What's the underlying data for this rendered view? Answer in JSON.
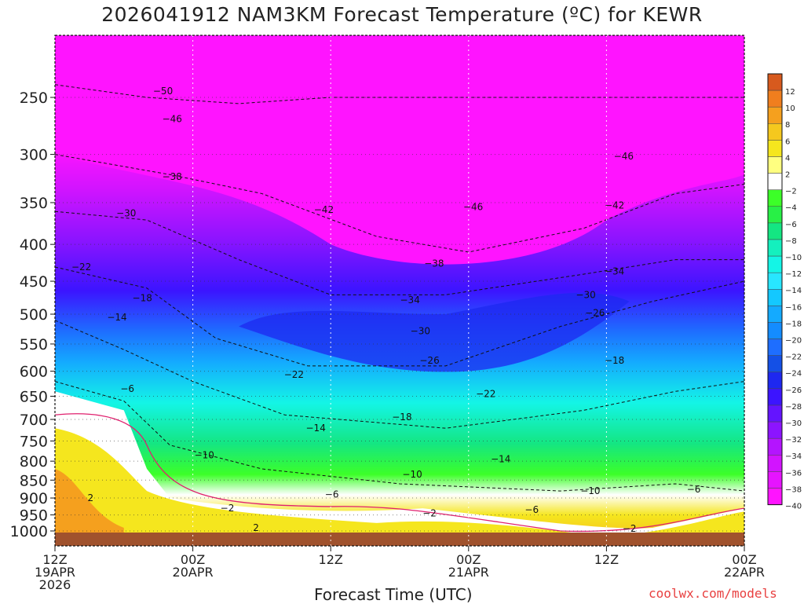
{
  "title": "2026041912 NAM3KM Forecast Temperature (ºC) for KEWR",
  "xlabel": "Forecast Time (UTC)",
  "credit": "coolwx.com/models",
  "chart_data": {
    "type": "contour",
    "title": "2026041912 NAM3KM Forecast Temperature (ºC) for KEWR",
    "xlabel": "Forecast Time (UTC)",
    "ylabel": "",
    "y_axis": "pressure (log), inverted",
    "ylim": [
      1050,
      200
    ],
    "y_ticks": [
      250,
      300,
      350,
      400,
      450,
      500,
      550,
      600,
      650,
      700,
      750,
      800,
      850,
      900,
      950,
      1000
    ],
    "x_ticks": [
      {
        "h": 0,
        "lines": [
          "12Z",
          "19APR",
          "2026"
        ]
      },
      {
        "h": 12,
        "lines": [
          "00Z",
          "20APR"
        ]
      },
      {
        "h": 24,
        "lines": [
          "12Z"
        ]
      },
      {
        "h": 36,
        "lines": [
          "00Z",
          "21APR"
        ]
      },
      {
        "h": 48,
        "lines": [
          "12Z"
        ]
      },
      {
        "h": 60,
        "lines": [
          "00Z",
          "22APR"
        ]
      }
    ],
    "xlim": [
      0,
      60
    ],
    "colorbar": {
      "levels": [
        12,
        10,
        8,
        6,
        4,
        2,
        -2,
        -4,
        -6,
        -8,
        -10,
        -12,
        -14,
        -16,
        -18,
        -20,
        -22,
        -24,
        -26,
        -28,
        -30,
        -32,
        -34,
        -36,
        -38,
        -40
      ],
      "colors": [
        "#d75a1e",
        "#f07e1e",
        "#f5a01e",
        "#f5c81e",
        "#f5e61e",
        "#ffff80",
        "#ffffff",
        "#3cff28",
        "#28f046",
        "#14e682",
        "#14f0be",
        "#14f5e6",
        "#28e6ff",
        "#14c8ff",
        "#14aaff",
        "#148cff",
        "#1e6eff",
        "#1450e6",
        "#1e28f0",
        "#3c14ff",
        "#6414ff",
        "#8c14ff",
        "#b414ff",
        "#d214ff",
        "#e614ff",
        "#ff14ff"
      ]
    },
    "labeled_contours": [
      {
        "value": -50,
        "h": 9.4,
        "p": 245
      },
      {
        "value": -46,
        "h": 10.2,
        "p": 268
      },
      {
        "value": -46,
        "h": 49.5,
        "p": 302
      },
      {
        "value": -46,
        "h": 36.4,
        "p": 355
      },
      {
        "value": -42,
        "h": 23.4,
        "p": 358
      },
      {
        "value": -42,
        "h": 48.7,
        "p": 353
      },
      {
        "value": -38,
        "h": 10.2,
        "p": 322
      },
      {
        "value": -38,
        "h": 33.0,
        "p": 425
      },
      {
        "value": -34,
        "h": 30.9,
        "p": 478
      },
      {
        "value": -34,
        "h": 48.7,
        "p": 436
      },
      {
        "value": -30,
        "h": 6.2,
        "p": 362
      },
      {
        "value": -30,
        "h": 31.8,
        "p": 528
      },
      {
        "value": -30,
        "h": 46.2,
        "p": 470
      },
      {
        "value": -26,
        "h": 32.6,
        "p": 580
      },
      {
        "value": -26,
        "h": 47.0,
        "p": 498
      },
      {
        "value": -22,
        "h": 2.3,
        "p": 430
      },
      {
        "value": -22,
        "h": 20.8,
        "p": 607
      },
      {
        "value": -22,
        "h": 37.5,
        "p": 645
      },
      {
        "value": -18,
        "h": 7.6,
        "p": 475
      },
      {
        "value": -18,
        "h": 30.2,
        "p": 695
      },
      {
        "value": -18,
        "h": 48.7,
        "p": 580
      },
      {
        "value": -14,
        "h": 5.4,
        "p": 505
      },
      {
        "value": -14,
        "h": 22.7,
        "p": 720
      },
      {
        "value": -14,
        "h": 38.8,
        "p": 795
      },
      {
        "value": -10,
        "h": 13.0,
        "p": 785
      },
      {
        "value": -10,
        "h": 31.1,
        "p": 835
      },
      {
        "value": -10,
        "h": 46.6,
        "p": 880
      },
      {
        "value": -6,
        "h": 6.3,
        "p": 635
      },
      {
        "value": -6,
        "h": 24.1,
        "p": 890
      },
      {
        "value": -6,
        "h": 41.5,
        "p": 935
      },
      {
        "value": -6,
        "h": 55.6,
        "p": 875
      },
      {
        "value": -2,
        "h": 15.0,
        "p": 930
      },
      {
        "value": -2,
        "h": 32.6,
        "p": 945
      },
      {
        "value": -2,
        "h": 50.0,
        "p": 993
      },
      {
        "value": 2,
        "h": 3.1,
        "p": 900
      },
      {
        "value": 2,
        "h": 17.5,
        "p": 990
      }
    ]
  }
}
